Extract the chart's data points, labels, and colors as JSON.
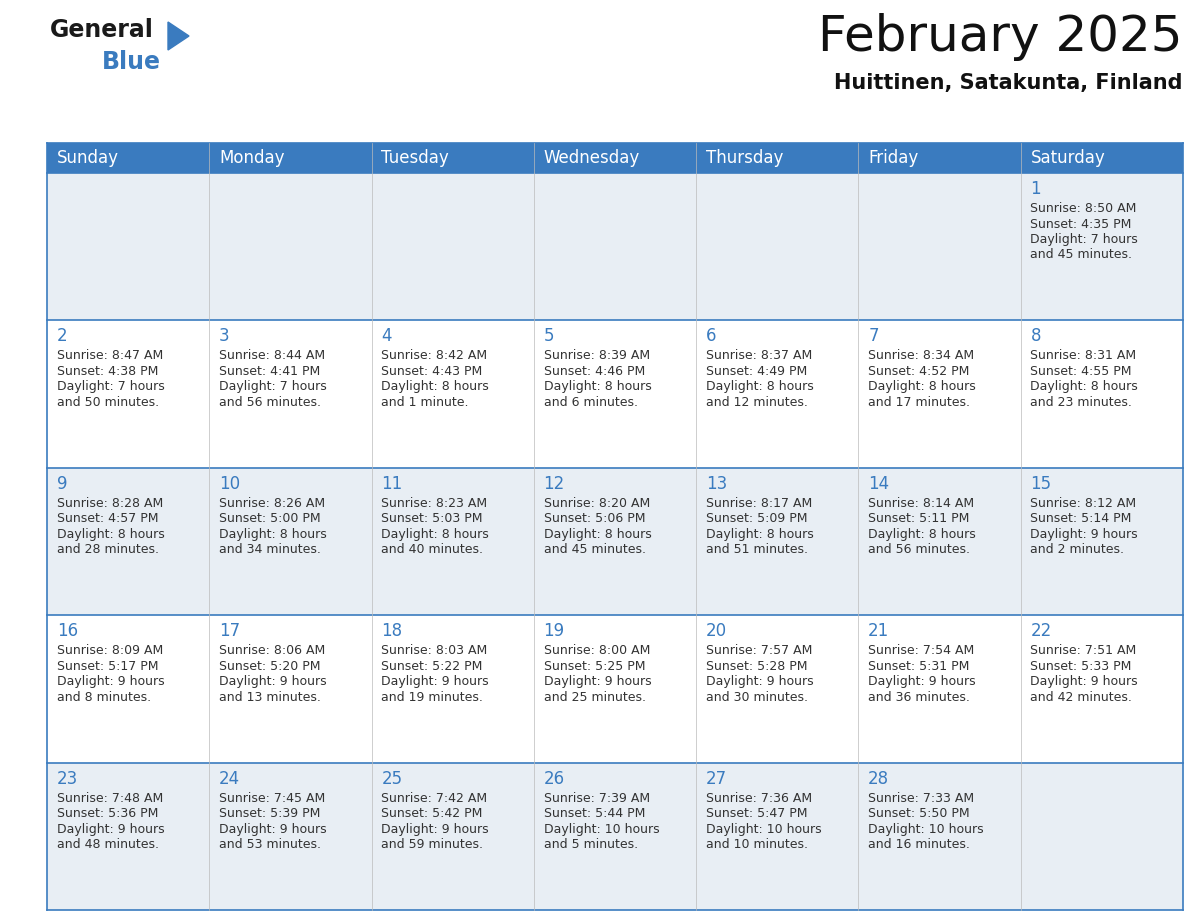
{
  "title": "February 2025",
  "subtitle": "Huittinen, Satakunta, Finland",
  "days_of_week": [
    "Sunday",
    "Monday",
    "Tuesday",
    "Wednesday",
    "Thursday",
    "Friday",
    "Saturday"
  ],
  "header_color": "#3a7bbf",
  "header_text_color": "#ffffff",
  "cell_bg_even": "#e8eef4",
  "cell_bg_odd": "#ffffff",
  "border_color": "#3a7bbf",
  "day_number_color": "#3a7bbf",
  "text_color": "#333333",
  "calendar_data": [
    [
      null,
      null,
      null,
      null,
      null,
      null,
      {
        "day": 1,
        "sunrise": "8:50 AM",
        "sunset": "4:35 PM",
        "daylight_line1": "Daylight: 7 hours",
        "daylight_line2": "and 45 minutes."
      }
    ],
    [
      {
        "day": 2,
        "sunrise": "8:47 AM",
        "sunset": "4:38 PM",
        "daylight_line1": "Daylight: 7 hours",
        "daylight_line2": "and 50 minutes."
      },
      {
        "day": 3,
        "sunrise": "8:44 AM",
        "sunset": "4:41 PM",
        "daylight_line1": "Daylight: 7 hours",
        "daylight_line2": "and 56 minutes."
      },
      {
        "day": 4,
        "sunrise": "8:42 AM",
        "sunset": "4:43 PM",
        "daylight_line1": "Daylight: 8 hours",
        "daylight_line2": "and 1 minute."
      },
      {
        "day": 5,
        "sunrise": "8:39 AM",
        "sunset": "4:46 PM",
        "daylight_line1": "Daylight: 8 hours",
        "daylight_line2": "and 6 minutes."
      },
      {
        "day": 6,
        "sunrise": "8:37 AM",
        "sunset": "4:49 PM",
        "daylight_line1": "Daylight: 8 hours",
        "daylight_line2": "and 12 minutes."
      },
      {
        "day": 7,
        "sunrise": "8:34 AM",
        "sunset": "4:52 PM",
        "daylight_line1": "Daylight: 8 hours",
        "daylight_line2": "and 17 minutes."
      },
      {
        "day": 8,
        "sunrise": "8:31 AM",
        "sunset": "4:55 PM",
        "daylight_line1": "Daylight: 8 hours",
        "daylight_line2": "and 23 minutes."
      }
    ],
    [
      {
        "day": 9,
        "sunrise": "8:28 AM",
        "sunset": "4:57 PM",
        "daylight_line1": "Daylight: 8 hours",
        "daylight_line2": "and 28 minutes."
      },
      {
        "day": 10,
        "sunrise": "8:26 AM",
        "sunset": "5:00 PM",
        "daylight_line1": "Daylight: 8 hours",
        "daylight_line2": "and 34 minutes."
      },
      {
        "day": 11,
        "sunrise": "8:23 AM",
        "sunset": "5:03 PM",
        "daylight_line1": "Daylight: 8 hours",
        "daylight_line2": "and 40 minutes."
      },
      {
        "day": 12,
        "sunrise": "8:20 AM",
        "sunset": "5:06 PM",
        "daylight_line1": "Daylight: 8 hours",
        "daylight_line2": "and 45 minutes."
      },
      {
        "day": 13,
        "sunrise": "8:17 AM",
        "sunset": "5:09 PM",
        "daylight_line1": "Daylight: 8 hours",
        "daylight_line2": "and 51 minutes."
      },
      {
        "day": 14,
        "sunrise": "8:14 AM",
        "sunset": "5:11 PM",
        "daylight_line1": "Daylight: 8 hours",
        "daylight_line2": "and 56 minutes."
      },
      {
        "day": 15,
        "sunrise": "8:12 AM",
        "sunset": "5:14 PM",
        "daylight_line1": "Daylight: 9 hours",
        "daylight_line2": "and 2 minutes."
      }
    ],
    [
      {
        "day": 16,
        "sunrise": "8:09 AM",
        "sunset": "5:17 PM",
        "daylight_line1": "Daylight: 9 hours",
        "daylight_line2": "and 8 minutes."
      },
      {
        "day": 17,
        "sunrise": "8:06 AM",
        "sunset": "5:20 PM",
        "daylight_line1": "Daylight: 9 hours",
        "daylight_line2": "and 13 minutes."
      },
      {
        "day": 18,
        "sunrise": "8:03 AM",
        "sunset": "5:22 PM",
        "daylight_line1": "Daylight: 9 hours",
        "daylight_line2": "and 19 minutes."
      },
      {
        "day": 19,
        "sunrise": "8:00 AM",
        "sunset": "5:25 PM",
        "daylight_line1": "Daylight: 9 hours",
        "daylight_line2": "and 25 minutes."
      },
      {
        "day": 20,
        "sunrise": "7:57 AM",
        "sunset": "5:28 PM",
        "daylight_line1": "Daylight: 9 hours",
        "daylight_line2": "and 30 minutes."
      },
      {
        "day": 21,
        "sunrise": "7:54 AM",
        "sunset": "5:31 PM",
        "daylight_line1": "Daylight: 9 hours",
        "daylight_line2": "and 36 minutes."
      },
      {
        "day": 22,
        "sunrise": "7:51 AM",
        "sunset": "5:33 PM",
        "daylight_line1": "Daylight: 9 hours",
        "daylight_line2": "and 42 minutes."
      }
    ],
    [
      {
        "day": 23,
        "sunrise": "7:48 AM",
        "sunset": "5:36 PM",
        "daylight_line1": "Daylight: 9 hours",
        "daylight_line2": "and 48 minutes."
      },
      {
        "day": 24,
        "sunrise": "7:45 AM",
        "sunset": "5:39 PM",
        "daylight_line1": "Daylight: 9 hours",
        "daylight_line2": "and 53 minutes."
      },
      {
        "day": 25,
        "sunrise": "7:42 AM",
        "sunset": "5:42 PM",
        "daylight_line1": "Daylight: 9 hours",
        "daylight_line2": "and 59 minutes."
      },
      {
        "day": 26,
        "sunrise": "7:39 AM",
        "sunset": "5:44 PM",
        "daylight_line1": "Daylight: 10 hours",
        "daylight_line2": "and 5 minutes."
      },
      {
        "day": 27,
        "sunrise": "7:36 AM",
        "sunset": "5:47 PM",
        "daylight_line1": "Daylight: 10 hours",
        "daylight_line2": "and 10 minutes."
      },
      {
        "day": 28,
        "sunrise": "7:33 AM",
        "sunset": "5:50 PM",
        "daylight_line1": "Daylight: 10 hours",
        "daylight_line2": "and 16 minutes."
      },
      null
    ]
  ],
  "logo_text_general": "General",
  "logo_text_blue": "Blue",
  "logo_color_general": "#1a1a1a",
  "logo_color_blue": "#3a7bbf",
  "logo_triangle_color": "#3a7bbf",
  "title_fontsize": 36,
  "subtitle_fontsize": 15,
  "header_fontsize": 12,
  "day_num_fontsize": 12,
  "cell_text_fontsize": 9
}
